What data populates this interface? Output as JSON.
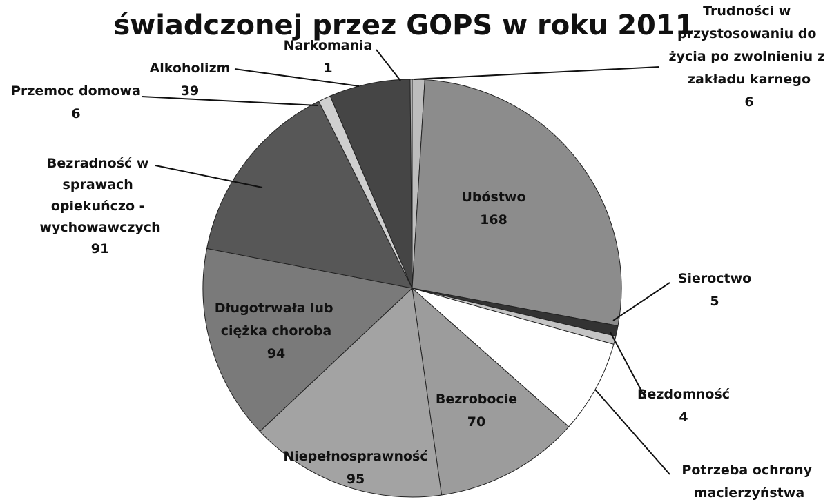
{
  "chart_data": {
    "type": "pie",
    "title": "świadczonej przez GOPS w roku 2011",
    "categories": [
      "Trudności w przystosowaniu do życia po zwolnieniu z zakładu karnego",
      "Ubóstwo",
      "Sieroctwo",
      "Bezdomność",
      "Potrzeba ochrony macierzyństwa",
      "Bezrobocie",
      "Niepełnosprawność",
      "Długotrwała lub ciężka choroba",
      "Bezradność w sprawach opiekuńczo - wychowawczych",
      "Przemoc domowa",
      "Alkoholizm",
      "Narkomania"
    ],
    "values": [
      6,
      168,
      5,
      4,
      45,
      70,
      95,
      94,
      91,
      6,
      39,
      1
    ],
    "colors": [
      "#bdbdbd",
      "#8c8c8c",
      "#333333",
      "#c4c4c4",
      "#ffffff",
      "#9c9c9c",
      "#a3a3a3",
      "#7a7a7a",
      "#575757",
      "#cfcfcf",
      "#454545",
      "#b0b0b0"
    ]
  }
}
